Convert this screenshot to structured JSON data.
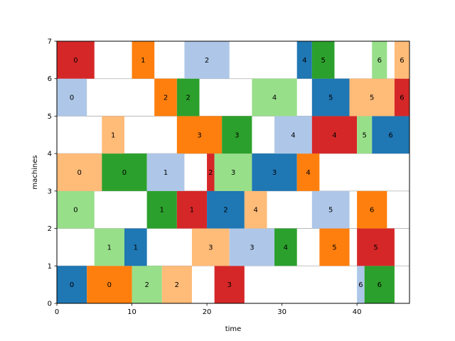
{
  "chart_data": {
    "type": "bar",
    "orientation": "horizontal",
    "title": "",
    "xlabel": "time",
    "ylabel": "machines",
    "xlim": [
      0,
      47
    ],
    "ylim": [
      0,
      7
    ],
    "xticks": [
      "0",
      "10",
      "20",
      "30",
      "40"
    ],
    "yticks": [
      "0",
      "1",
      "2",
      "3",
      "4",
      "5",
      "6",
      "7"
    ],
    "grid": "horizontal",
    "job_colors": {
      "0": "#d62728",
      "1": "#ff7f0e",
      "2": "#aec7e8",
      "3": "#1f77b4",
      "4": "#98df8a",
      "5": "#2ca02c",
      "6": "#ffbb78"
    },
    "tasks": [
      {
        "machine": 0,
        "start": 0,
        "end": 4,
        "label": "0",
        "color": "#1f77b4"
      },
      {
        "machine": 0,
        "start": 4,
        "end": 10,
        "label": "0",
        "color": "#ff7f0e"
      },
      {
        "machine": 0,
        "start": 10,
        "end": 14,
        "label": "2",
        "color": "#98df8a"
      },
      {
        "machine": 0,
        "start": 14,
        "end": 18,
        "label": "2",
        "color": "#ffbb78"
      },
      {
        "machine": 0,
        "start": 21,
        "end": 25,
        "label": "3",
        "color": "#d62728"
      },
      {
        "machine": 0,
        "start": 40,
        "end": 41,
        "label": "6",
        "color": "#aec7e8"
      },
      {
        "machine": 0,
        "start": 41,
        "end": 45,
        "label": "6",
        "color": "#2ca02c"
      },
      {
        "machine": 1,
        "start": 5,
        "end": 9,
        "label": "1",
        "color": "#98df8a"
      },
      {
        "machine": 1,
        "start": 9,
        "end": 12,
        "label": "1",
        "color": "#1f77b4"
      },
      {
        "machine": 1,
        "start": 18,
        "end": 23,
        "label": "3",
        "color": "#ffbb78"
      },
      {
        "machine": 1,
        "start": 23,
        "end": 29,
        "label": "3",
        "color": "#aec7e8"
      },
      {
        "machine": 1,
        "start": 29,
        "end": 32,
        "label": "4",
        "color": "#2ca02c"
      },
      {
        "machine": 1,
        "start": 35,
        "end": 39,
        "label": "5",
        "color": "#ff7f0e"
      },
      {
        "machine": 1,
        "start": 40,
        "end": 45,
        "label": "5",
        "color": "#d62728"
      },
      {
        "machine": 2,
        "start": 0,
        "end": 5,
        "label": "0",
        "color": "#98df8a"
      },
      {
        "machine": 2,
        "start": 12,
        "end": 16,
        "label": "1",
        "color": "#2ca02c"
      },
      {
        "machine": 2,
        "start": 16,
        "end": 20,
        "label": "1",
        "color": "#d62728"
      },
      {
        "machine": 2,
        "start": 20,
        "end": 25,
        "label": "2",
        "color": "#1f77b4"
      },
      {
        "machine": 2,
        "start": 25,
        "end": 28,
        "label": "4",
        "color": "#ffbb78"
      },
      {
        "machine": 2,
        "start": 34,
        "end": 39,
        "label": "5",
        "color": "#aec7e8"
      },
      {
        "machine": 2,
        "start": 40,
        "end": 44,
        "label": "6",
        "color": "#ff7f0e"
      },
      {
        "machine": 3,
        "start": 0,
        "end": 6,
        "label": "0",
        "color": "#ffbb78"
      },
      {
        "machine": 3,
        "start": 6,
        "end": 12,
        "label": "0",
        "color": "#2ca02c"
      },
      {
        "machine": 3,
        "start": 12,
        "end": 17,
        "label": "1",
        "color": "#aec7e8"
      },
      {
        "machine": 3,
        "start": 20,
        "end": 21,
        "label": "2",
        "color": "#d62728"
      },
      {
        "machine": 3,
        "start": 21,
        "end": 26,
        "label": "3",
        "color": "#98df8a"
      },
      {
        "machine": 3,
        "start": 26,
        "end": 32,
        "label": "3",
        "color": "#1f77b4"
      },
      {
        "machine": 3,
        "start": 32,
        "end": 35,
        "label": "4",
        "color": "#ff7f0e"
      },
      {
        "machine": 4,
        "start": 6,
        "end": 9,
        "label": "1",
        "color": "#ffbb78"
      },
      {
        "machine": 4,
        "start": 16,
        "end": 22,
        "label": "3",
        "color": "#ff7f0e"
      },
      {
        "machine": 4,
        "start": 22,
        "end": 26,
        "label": "3",
        "color": "#2ca02c"
      },
      {
        "machine": 4,
        "start": 29,
        "end": 34,
        "label": "4",
        "color": "#aec7e8"
      },
      {
        "machine": 4,
        "start": 34,
        "end": 40,
        "label": "4",
        "color": "#d62728"
      },
      {
        "machine": 4,
        "start": 40,
        "end": 42,
        "label": "5",
        "color": "#98df8a"
      },
      {
        "machine": 4,
        "start": 42,
        "end": 47,
        "label": "6",
        "color": "#1f77b4"
      },
      {
        "machine": 5,
        "start": 0,
        "end": 4,
        "label": "0",
        "color": "#aec7e8"
      },
      {
        "machine": 5,
        "start": 13,
        "end": 16,
        "label": "2",
        "color": "#ff7f0e"
      },
      {
        "machine": 5,
        "start": 16,
        "end": 19,
        "label": "2",
        "color": "#2ca02c"
      },
      {
        "machine": 5,
        "start": 26,
        "end": 32,
        "label": "4",
        "color": "#98df8a"
      },
      {
        "machine": 5,
        "start": 34,
        "end": 39,
        "label": "5",
        "color": "#1f77b4"
      },
      {
        "machine": 5,
        "start": 39,
        "end": 45,
        "label": "5",
        "color": "#ffbb78"
      },
      {
        "machine": 5,
        "start": 45,
        "end": 47,
        "label": "6",
        "color": "#d62728"
      },
      {
        "machine": 6,
        "start": 0,
        "end": 5,
        "label": "0",
        "color": "#d62728"
      },
      {
        "machine": 6,
        "start": 10,
        "end": 13,
        "label": "1",
        "color": "#ff7f0e"
      },
      {
        "machine": 6,
        "start": 17,
        "end": 23,
        "label": "2",
        "color": "#aec7e8"
      },
      {
        "machine": 6,
        "start": 32,
        "end": 34,
        "label": "4",
        "color": "#1f77b4"
      },
      {
        "machine": 6,
        "start": 34,
        "end": 37,
        "label": "5",
        "color": "#2ca02c"
      },
      {
        "machine": 6,
        "start": 42,
        "end": 44,
        "label": "6",
        "color": "#98df8a"
      },
      {
        "machine": 6,
        "start": 45,
        "end": 47,
        "label": "6",
        "color": "#ffbb78"
      }
    ]
  }
}
